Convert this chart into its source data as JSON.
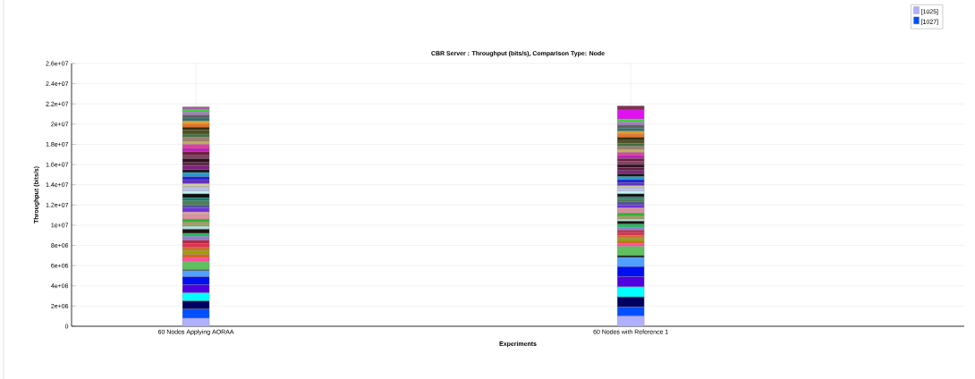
{
  "chart_data": {
    "type": "bar",
    "stacked": true,
    "title": "CBR Server : Throughput (bits/s), Comparison Type: Node",
    "xlabel": "Experiments",
    "ylabel": "Throughput (bits/s)",
    "categories": [
      "60 Nodes Applying AORAA",
      "60 Nodes with Reference 1"
    ],
    "ylim": [
      0,
      26000000
    ],
    "yticks": [
      0,
      {
        "value": 2000000,
        "label": "2e+06"
      },
      {
        "value": 4000000,
        "label": "4e+06"
      },
      {
        "value": 6000000,
        "label": "6e+06"
      },
      {
        "value": 8000000,
        "label": "8e+06"
      },
      {
        "value": 10000000,
        "label": "1e+07"
      },
      {
        "value": 12000000,
        "label": "1.2e+07"
      },
      {
        "value": 14000000,
        "label": "1.4e+07"
      },
      {
        "value": 16000000,
        "label": "1.6e+07"
      },
      {
        "value": 18000000,
        "label": "1.8e+07"
      },
      {
        "value": 20000000,
        "label": "2e+07"
      },
      {
        "value": 22000000,
        "label": "2.2e+07"
      },
      {
        "value": 24000000,
        "label": "2.4e+07"
      },
      {
        "value": 26000000,
        "label": "2.6e+07"
      }
    ],
    "grid": true,
    "legend": "top right",
    "series": [
      {
        "name": "[1025]",
        "color": "#b0b0ff",
        "values": [
          800000,
          1000000
        ]
      },
      {
        "name": "[1027]",
        "color": "#0050ff",
        "values": [
          900000,
          900000
        ]
      },
      {
        "color": "#000060",
        "values": [
          800000,
          1000000
        ]
      },
      {
        "color": "#00ffff",
        "values": [
          800000,
          1000000
        ]
      },
      {
        "color": "#5000e0",
        "values": [
          800000,
          1000000
        ]
      },
      {
        "color": "#0010f0",
        "values": [
          800000,
          1000000
        ]
      },
      {
        "color": "#50a0ff",
        "values": [
          600000,
          900000
        ]
      },
      {
        "color": "#1a2a2a",
        "values": [
          100000,
          200000
        ]
      },
      {
        "color": "#60c060",
        "values": [
          800000,
          900000
        ]
      },
      {
        "color": "#ff4f9a",
        "values": [
          400000,
          300000
        ]
      },
      {
        "color": "#e06020",
        "values": [
          300000,
          200000
        ]
      },
      {
        "color": "#a0a000",
        "values": [
          400000,
          300000
        ]
      },
      {
        "color": "#d07030",
        "values": [
          300000,
          300000
        ]
      },
      {
        "color": "#e03050",
        "values": [
          400000,
          300000
        ]
      },
      {
        "color": "#c02040",
        "values": [
          300000,
          200000
        ]
      },
      {
        "color": "#9080d0",
        "values": [
          400000,
          300000
        ]
      },
      {
        "color": "#20c060",
        "values": [
          300000,
          300000
        ]
      },
      {
        "color": "#201010",
        "values": [
          400000,
          300000
        ]
      },
      {
        "color": "#b0e0e0",
        "values": [
          300000,
          200000
        ]
      },
      {
        "color": "#a0a060",
        "values": [
          400000,
          300000
        ]
      },
      {
        "color": "#30b030",
        "values": [
          300000,
          300000
        ]
      },
      {
        "color": "#e090a0",
        "values": [
          400000,
          300000
        ]
      },
      {
        "color": "#e0a0a0",
        "values": [
          300000,
          200000
        ]
      },
      {
        "color": "#7030e0",
        "values": [
          400000,
          300000
        ]
      },
      {
        "color": "#5050a0",
        "values": [
          300000,
          300000
        ]
      },
      {
        "color": "#508050",
        "values": [
          400000,
          300000
        ]
      },
      {
        "color": "#108070",
        "values": [
          300000,
          200000
        ]
      },
      {
        "color": "#101010",
        "values": [
          400000,
          300000
        ]
      },
      {
        "color": "#c0f0f0",
        "values": [
          300000,
          300000
        ]
      },
      {
        "color": "#c0c0f0",
        "values": [
          400000,
          300000
        ]
      },
      {
        "color": "#d0d0a0",
        "values": [
          300000,
          200000
        ]
      },
      {
        "color": "#6030c0",
        "values": [
          400000,
          300000
        ]
      },
      {
        "color": "#2020e0",
        "values": [
          300000,
          300000
        ]
      },
      {
        "color": "#20a0d0",
        "values": [
          400000,
          300000
        ]
      },
      {
        "color": "#181818",
        "values": [
          300000,
          300000
        ]
      },
      {
        "color": "#802080",
        "values": [
          400000,
          300000
        ]
      },
      {
        "color": "#602040",
        "values": [
          300000,
          300000
        ]
      },
      {
        "color": "#301020",
        "values": [
          400000,
          300000
        ]
      },
      {
        "color": "#804060",
        "values": [
          300000,
          300000
        ]
      },
      {
        "color": "#702040",
        "values": [
          400000,
          300000
        ]
      },
      {
        "color": "#c020c0",
        "values": [
          300000,
          300000
        ]
      },
      {
        "color": "#e040a0",
        "values": [
          400000,
          300000
        ]
      },
      {
        "color": "#c0b060",
        "values": [
          300000,
          300000
        ]
      },
      {
        "color": "#a08070",
        "values": [
          400000,
          300000
        ]
      },
      {
        "color": "#407040",
        "values": [
          300000,
          300000
        ]
      },
      {
        "color": "#505020",
        "values": [
          400000,
          300000
        ]
      },
      {
        "color": "#303010",
        "values": [
          300000,
          300000
        ]
      },
      {
        "color": "#f07020",
        "values": [
          300000,
          300000
        ]
      },
      {
        "color": "#e0a030",
        "values": [
          300000,
          300000
        ]
      },
      {
        "color": "#307070",
        "values": [
          300000,
          300000
        ]
      },
      {
        "color": "#606060",
        "values": [
          300000,
          300000
        ]
      },
      {
        "color": "#a080c0",
        "values": [
          300000,
          300000
        ]
      },
      {
        "color": "#40d040",
        "values": [
          300000,
          300000
        ]
      },
      {
        "color": "#e010f0",
        "values": [
          100000,
          900000
        ]
      },
      {
        "color": "#803050",
        "values": [
          100000,
          400000
        ]
      }
    ]
  }
}
